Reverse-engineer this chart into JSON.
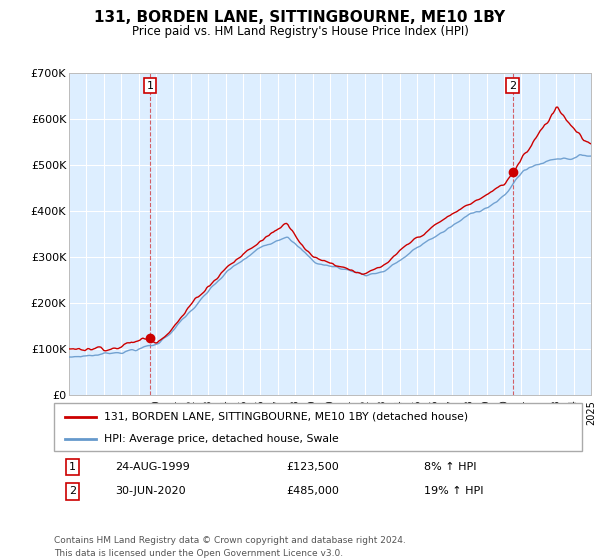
{
  "title": "131, BORDEN LANE, SITTINGBOURNE, ME10 1BY",
  "subtitle": "Price paid vs. HM Land Registry's House Price Index (HPI)",
  "sale1_date": "24-AUG-1999",
  "sale1_price": 123500,
  "sale1_label": "8% ↑ HPI",
  "sale2_date": "30-JUN-2020",
  "sale2_price": 485000,
  "sale2_label": "19% ↑ HPI",
  "legend_line1": "131, BORDEN LANE, SITTINGBOURNE, ME10 1BY (detached house)",
  "legend_line2": "HPI: Average price, detached house, Swale",
  "footer1": "Contains HM Land Registry data © Crown copyright and database right 2024.",
  "footer2": "This data is licensed under the Open Government Licence v3.0.",
  "ylim": [
    0,
    700000
  ],
  "yticks": [
    0,
    100000,
    200000,
    300000,
    400000,
    500000,
    600000,
    700000
  ],
  "ytick_labels": [
    "£0",
    "£100K",
    "£200K",
    "£300K",
    "£400K",
    "£500K",
    "£600K",
    "£700K"
  ],
  "x_start_year": 1995,
  "x_end_year": 2025,
  "red_color": "#cc0000",
  "blue_color": "#6699cc",
  "background_color": "#ddeeff",
  "grid_color": "#ffffff",
  "sale1_x": 1999.65,
  "sale2_x": 2020.5
}
